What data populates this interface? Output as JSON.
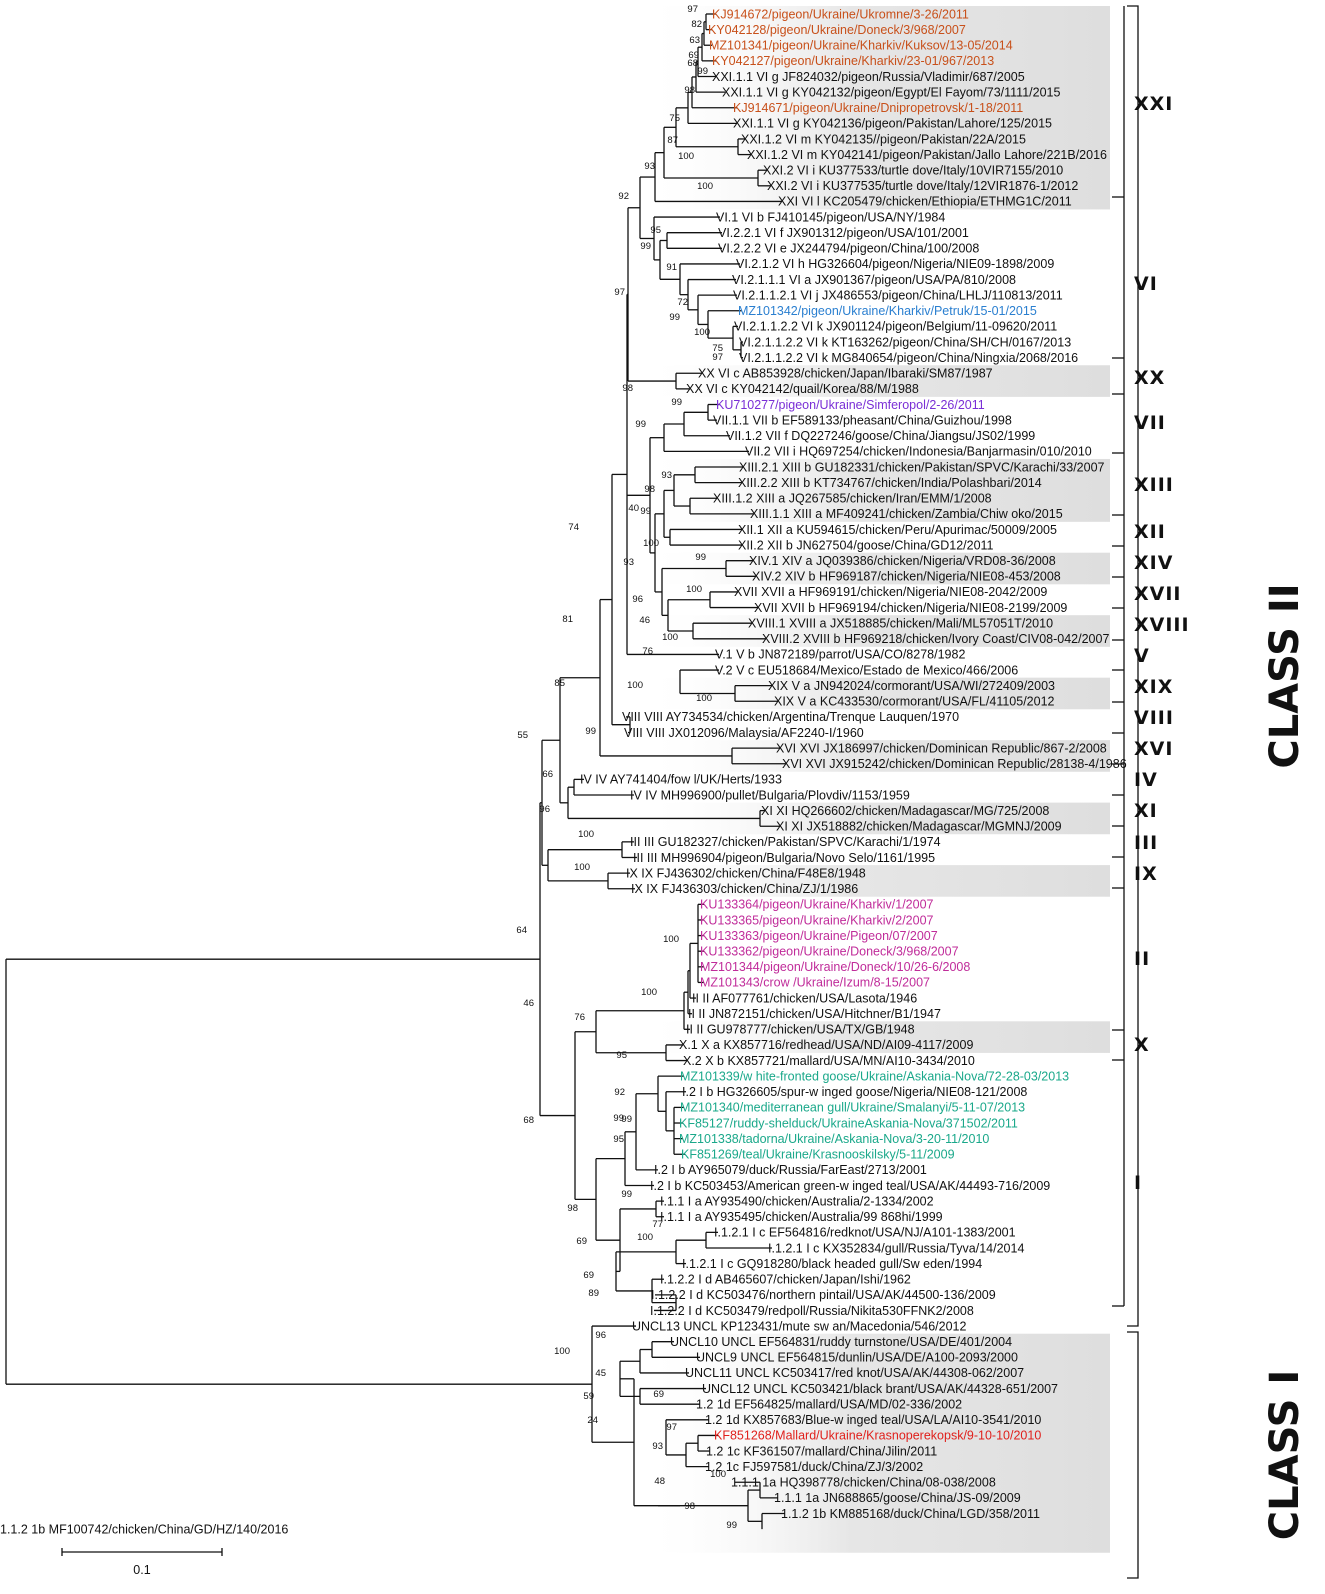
{
  "colors": {
    "black": "#111111",
    "orange": "#c8501a",
    "blue": "#2a7fd0",
    "purple": "#7a2fd6",
    "magenta": "#c02c9a",
    "teal": "#1aa88a",
    "red": "#e0201c",
    "shade": "#e6e6e6"
  },
  "scale_bar": {
    "label": "0.1"
  },
  "classes": [
    {
      "name": "CLASS II"
    },
    {
      "name": "CLASS I"
    }
  ],
  "genotypes": [
    "XXI",
    "VI",
    "XX",
    "VII",
    "XIII",
    "XII",
    "XIV",
    "XVII",
    "XVIII",
    "V",
    "XIX",
    "VIII",
    "XVI",
    "IV",
    "XI",
    "III",
    "IX",
    "II",
    "X",
    "I"
  ],
  "leaves": [
    {
      "label": "KJ914672/pigeon/Ukraine/Ukromne/3-26/2011",
      "color": "orange"
    },
    {
      "label": "KY042128/pigeon/Ukraine/Doneck/3/968/2007",
      "color": "orange"
    },
    {
      "label": "MZ101341/pigeon/Ukraine/Kharkiv/Kuksov/13-05/2014",
      "color": "orange"
    },
    {
      "label": "KY042127/pigeon/Ukraine/Kharkiv/23-01/967/2013",
      "color": "orange"
    },
    {
      "label": "XXI.1.1 VI g JF824032/pigeon/Russia/Vladimir/687/2005",
      "color": "black"
    },
    {
      "label": "XXI.1.1 VI g KY042132/pigeon/Egypt/El Fayom/73/1111/2015",
      "color": "black"
    },
    {
      "label": "KJ914671/pigeon/Ukraine/Dnipropetrovsk/1-18/2011",
      "color": "orange"
    },
    {
      "label": "XXI.1.1 VI g KY042136/pigeon/Pakistan/Lahore/125/2015",
      "color": "black"
    },
    {
      "label": "XXI.1.2 VI m KY042135//pigeon/Pakistan/22A/2015",
      "color": "black"
    },
    {
      "label": "XXI.1.2 VI m KY042141/pigeon/Pakistan/Jallo Lahore/221B/2016",
      "color": "black"
    },
    {
      "label": "XXI.2 VI i KU377533/turtle dove/Italy/10VIR7155/2010",
      "color": "black"
    },
    {
      "label": "XXI.2 VI i KU377535/turtle dove/Italy/12VIR1876-1/2012",
      "color": "black"
    },
    {
      "label": "XXI VI l KC205479/chicken/Ethiopia/ETHMG1C/2011",
      "color": "black"
    },
    {
      "label": "VI.1 VI b FJ410145/pigeon/USA/NY/1984",
      "color": "black"
    },
    {
      "label": "VI.2.2.1 VI f JX901312/pigeon/USA/101/2001",
      "color": "black"
    },
    {
      "label": "VI.2.2.2 VI e JX244794/pigeon/China/100/2008",
      "color": "black"
    },
    {
      "label": "VI.2.1.2 VI h HG326604/pigeon/Nigeria/NIE09-1898/2009",
      "color": "black"
    },
    {
      "label": "VI.2.1.1.1 VI a JX901367/pigeon/USA/PA/810/2008",
      "color": "black"
    },
    {
      "label": "VI.2.1.1.2.1 VI j JX486553/pigeon/China/LHLJ/110813/2011",
      "color": "black"
    },
    {
      "label": "MZ101342/pigeon/Ukraine/Kharkiv/Petruk/15-01/2015",
      "color": "blue"
    },
    {
      "label": "VI.2.1.1.2.2 VI k JX901124/pigeon/Belgium/11-09620/2011",
      "color": "black"
    },
    {
      "label": "VI.2.1.1.2.2 VI k KT163262/pigeon/China/SH/CH/0167/2013",
      "color": "black"
    },
    {
      "label": "VI.2.1.1.2.2 VI k MG840654/pigeon/China/Ningxia/2068/2016",
      "color": "black"
    },
    {
      "label": "XX VI c AB853928/chicken/Japan/Ibaraki/SM87/1987",
      "color": "black"
    },
    {
      "label": "XX VI c KY042142/quail/Korea/88/M/1988",
      "color": "black"
    },
    {
      "label": "KU710277/pigeon/Ukraine/Simferopol/2-26/2011",
      "color": "purple"
    },
    {
      "label": "VII.1.1 VII b EF589133/pheasant/China/Guizhou/1998",
      "color": "black"
    },
    {
      "label": "VII.1.2 VII f DQ227246/goose/China/Jiangsu/JS02/1999",
      "color": "black"
    },
    {
      "label": "VII.2 VII i HQ697254/chicken/Indonesia/Banjarmasin/010/2010",
      "color": "black"
    },
    {
      "label": "XIII.2.1 XIII b GU182331/chicken/Pakistan/SPVC/Karachi/33/2007",
      "color": "black"
    },
    {
      "label": "XIII.2.2 XIII b KT734767/chicken/India/Polashbari/2014",
      "color": "black"
    },
    {
      "label": "XIII.1.2 XIII a JQ267585/chicken/Iran/EMM/1/2008",
      "color": "black"
    },
    {
      "label": "XIII.1.1 XIII a MF409241/chicken/Zambia/Chiw oko/2015",
      "color": "black"
    },
    {
      "label": "XII.1 XII a KU594615/chicken/Peru/Apurimac/50009/2005",
      "color": "black"
    },
    {
      "label": "XII.2 XII b JN627504/goose/China/GD12/2011",
      "color": "black"
    },
    {
      "label": "XIV.1 XIV a JQ039386/chicken/Nigeria/VRD08-36/2008",
      "color": "black"
    },
    {
      "label": "XIV.2 XIV b HF969187/chicken/Nigeria/NIE08-453/2008",
      "color": "black"
    },
    {
      "label": "XVII XVII a HF969191/chicken/Nigeria/NIE08-2042/2009",
      "color": "black"
    },
    {
      "label": "XVII XVII b HF969194/chicken/Nigeria/NIE08-2199/2009",
      "color": "black"
    },
    {
      "label": "XVIII.1 XVIII a JX518885/chicken/Mali/ML57051T/2010",
      "color": "black"
    },
    {
      "label": "XVIII.2 XVIII b HF969218/chicken/Ivory Coast/CIV08-042/2007",
      "color": "black"
    },
    {
      "label": "V.1 V b JN872189/parrot/USA/CO/8278/1982",
      "color": "black"
    },
    {
      "label": "V.2 V c EU518684/Mexico/Estado de Mexico/466/2006",
      "color": "black"
    },
    {
      "label": "XIX V a JN942024/cormorant/USA/WI/272409/2003",
      "color": "black"
    },
    {
      "label": "XIX V a KC433530/cormorant/USA/FL/41105/2012",
      "color": "black"
    },
    {
      "label": "VIII VIII AY734534/chicken/Argentina/Trenque Lauquen/1970",
      "color": "black"
    },
    {
      "label": "VIII VIII JX012096/Malaysia/AF2240-I/1960",
      "color": "black"
    },
    {
      "label": "XVI XVI JX186997/chicken/Dominican Republic/867-2/2008",
      "color": "black"
    },
    {
      "label": "XVI XVI JX915242/chicken/Dominican Republic/28138-4/1986",
      "color": "black"
    },
    {
      "label": "IV IV AY741404/fow l/UK/Herts/1933",
      "color": "black"
    },
    {
      "label": "IV IV MH996900/pullet/Bulgaria/Plovdiv/1153/1959",
      "color": "black"
    },
    {
      "label": "XI XI HQ266602/chicken/Madagascar/MG/725/2008",
      "color": "black"
    },
    {
      "label": "XI XI JX518882/chicken/Madagascar/MGMNJ/2009",
      "color": "black"
    },
    {
      "label": "III III GU182327/chicken/Pakistan/SPVC/Karachi/1/1974",
      "color": "black"
    },
    {
      "label": "III III MH996904/pigeon/Bulgaria/Novo Selo/1161/1995",
      "color": "black"
    },
    {
      "label": "IX IX FJ436302/chicken/China/F48E8/1948",
      "color": "black"
    },
    {
      "label": "IX IX FJ436303/chicken/China/ZJ/1/1986",
      "color": "black"
    },
    {
      "label": "KU133364/pigeon/Ukraine/Kharkiv/1/2007",
      "color": "magenta"
    },
    {
      "label": "KU133365/pigeon/Ukraine/Kharkiv/2/2007",
      "color": "magenta"
    },
    {
      "label": "KU133363/pigeon/Ukraine/Pigeon/07/2007",
      "color": "magenta"
    },
    {
      "label": "KU133362/pigeon/Ukraine/Doneck/3/968/2007",
      "color": "magenta"
    },
    {
      "label": "MZ101344/pigeon/Ukraine/Doneck/10/26-6/2008",
      "color": "magenta"
    },
    {
      "label": "MZ101343/crow /Ukraine/Izum/8-15/2007",
      "color": "magenta"
    },
    {
      "label": "II II AF077761/chicken/USA/Lasota/1946",
      "color": "black"
    },
    {
      "label": "II II JN872151/chicken/USA/Hitchner/B1/1947",
      "color": "black"
    },
    {
      "label": "II II GU978777/chicken/USA/TX/GB/1948",
      "color": "black"
    },
    {
      "label": "X.1 X a KX857716/redhead/USA/ND/AI09-4117/2009",
      "color": "black"
    },
    {
      "label": "X.2 X b KX857721/mallard/USA/MN/AI10-3434/2010",
      "color": "black"
    },
    {
      "label": "MZ101339/w hite-fronted goose/Ukraine/Askania-Nova/72-28-03/2013",
      "color": "teal"
    },
    {
      "label": "I.2 I b HG326605/spur-w inged goose/Nigeria/NIE08-121/2008",
      "color": "black"
    },
    {
      "label": "MZ101340/mediterranean gull/Ukraine/Smalanyi/5-11-07/2013",
      "color": "teal"
    },
    {
      "label": "KF85127/ruddy-shelduck/UkraineAskania-Nova/371502/2011",
      "color": "teal"
    },
    {
      "label": "MZ101338/tadorna/Ukraine/Askania-Nova/3-20-11/2010",
      "color": "teal"
    },
    {
      "label": "KF851269/teal/Ukraine/Krasnooskilsky/5-11/2009",
      "color": "teal"
    },
    {
      "label": "I.2 I b AY965079/duck/Russia/FarEast/2713/2001",
      "color": "black"
    },
    {
      "label": "I.2 I b KC503453/American green-w inged teal/USA/AK/44493-716/2009",
      "color": "black"
    },
    {
      "label": "I.1.1 I a AY935490/chicken/Australia/2-1334/2002",
      "color": "black"
    },
    {
      "label": "I.1.1 I a AY935495/chicken/Australia/99 868hi/1999",
      "color": "black"
    },
    {
      "label": "I.1.2.1 I c EF564816/redknot/USA/NJ/A101-1383/2001",
      "color": "black"
    },
    {
      "label": "I.1.2.1 I c KX352834/gull/Russia/Tyva/14/2014",
      "color": "black"
    },
    {
      "label": "I.1.2.1 I c GQ918280/black headed gull/Sw eden/1994",
      "color": "black"
    },
    {
      "label": "I.1.2.2 I d AB465607/chicken/Japan/Ishi/1962",
      "color": "black"
    },
    {
      "label": "I.1.2.2 I d KC503476/northern pintail/USA/AK/44500-136/2009",
      "color": "black"
    },
    {
      "label": "I.1.2.2 I d KC503479/redpoll/Russia/Nikita530FFNK2/2008",
      "color": "black"
    },
    {
      "label": "UNCL13 UNCL KP123431/mute sw an/Macedonia/546/2012",
      "color": "black"
    },
    {
      "label": "UNCL10 UNCL EF564831/ruddy turnstone/USA/DE/401/2004",
      "color": "black"
    },
    {
      "label": "UNCL9 UNCL EF564815/dunlin/USA/DE/A100-2093/2000",
      "color": "black"
    },
    {
      "label": "UNCL11 UNCL KC503417/red knot/USA/AK/44308-062/2007",
      "color": "black"
    },
    {
      "label": "UNCL12 UNCL KC503421/black brant/USA/AK/44328-651/2007",
      "color": "black"
    },
    {
      "label": "1.2 1d EF564825/mallard/USA/MD/02-336/2002",
      "color": "black"
    },
    {
      "label": "1.2 1d KX857683/Blue-w inged teal/USA/LA/AI10-3541/2010",
      "color": "black"
    },
    {
      "label": "KF851268/Mallard/Ukraine/Krasnoperekopsk/9-10-10/2010",
      "color": "red"
    },
    {
      "label": "1.2 1c KF361507/mallard/China/Jilin/2011",
      "color": "black"
    },
    {
      "label": "1.2 1c FJ597581/duck/China/ZJ/3/2002",
      "color": "black"
    },
    {
      "label": "1.1.1 1a HQ398778/chicken/China/08-038/2008",
      "color": "black"
    },
    {
      "label": "1.1.1 1a JN688865/goose/China/JS-09/2009",
      "color": "black"
    },
    {
      "label": "1.1.2 1b KM885168/duck/China/LGD/358/2011",
      "color": "black"
    },
    {
      "label": "1.1.2 1b MF100742/chicken/China/GD/HZ/140/2016",
      "color": "black"
    }
  ],
  "bootstrap": [
    "97",
    "82",
    "63",
    "69",
    "68",
    "99",
    "98",
    "75",
    "87",
    "100",
    "93",
    "100",
    "92",
    "95",
    "99",
    "91",
    "72",
    "99",
    "100",
    "75",
    "97",
    "97",
    "98",
    "99",
    "99",
    "93",
    "98",
    "40",
    "99",
    "100",
    "74",
    "93",
    "99",
    "100",
    "96",
    "46",
    "100",
    "81",
    "76",
    "100",
    "100",
    "85",
    "99",
    "55",
    "66",
    "96",
    "100",
    "100",
    "64",
    "46",
    "100",
    "100",
    "76",
    "95",
    "92",
    "99",
    "99",
    "95",
    "68",
    "98",
    "99",
    "69",
    "77",
    "100",
    "69",
    "89",
    "100",
    "96",
    "45",
    "59",
    "24",
    "69",
    "97",
    "93",
    "48",
    "100",
    "98",
    "99"
  ]
}
